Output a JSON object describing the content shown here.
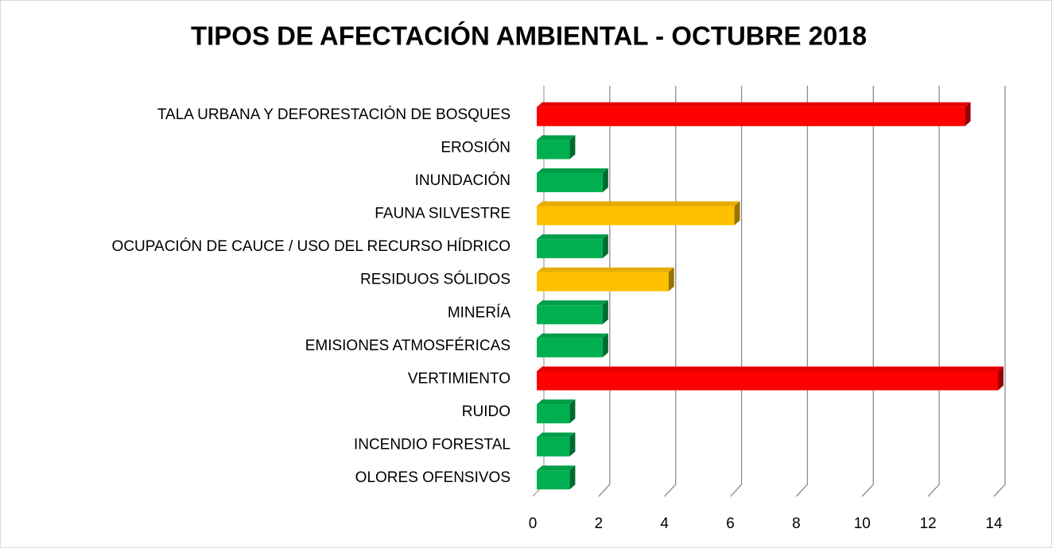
{
  "chart_data": {
    "type": "bar",
    "orientation": "horizontal",
    "title": "TIPOS DE AFECTACIÓN  AMBIENTAL  - OCTUBRE 2018",
    "categories": [
      "TALA URBANA Y DEFORESTACIÓN DE BOSQUES",
      "EROSIÓN",
      "INUNDACIÓN",
      "FAUNA SILVESTRE",
      "OCUPACIÓN DE CAUCE / USO DEL RECURSO HÍDRICO",
      "RESIDUOS SÓLIDOS",
      "MINERÍA",
      "EMISIONES ATMOSFÉRICAS",
      "VERTIMIENTO",
      "RUIDO",
      "INCENDIO FORESTAL",
      "OLORES OFENSIVOS"
    ],
    "values": [
      13,
      1,
      2,
      6,
      2,
      4,
      2,
      2,
      14,
      1,
      1,
      1
    ],
    "colors": [
      "#ff0000",
      "#00b050",
      "#00b050",
      "#ffc000",
      "#00b050",
      "#ffc000",
      "#00b050",
      "#00b050",
      "#ff0000",
      "#00b050",
      "#00b050",
      "#00b050"
    ],
    "xlim": [
      0,
      14
    ],
    "xticks": [
      0,
      2,
      4,
      6,
      8,
      10,
      12,
      14
    ],
    "grid": true
  }
}
